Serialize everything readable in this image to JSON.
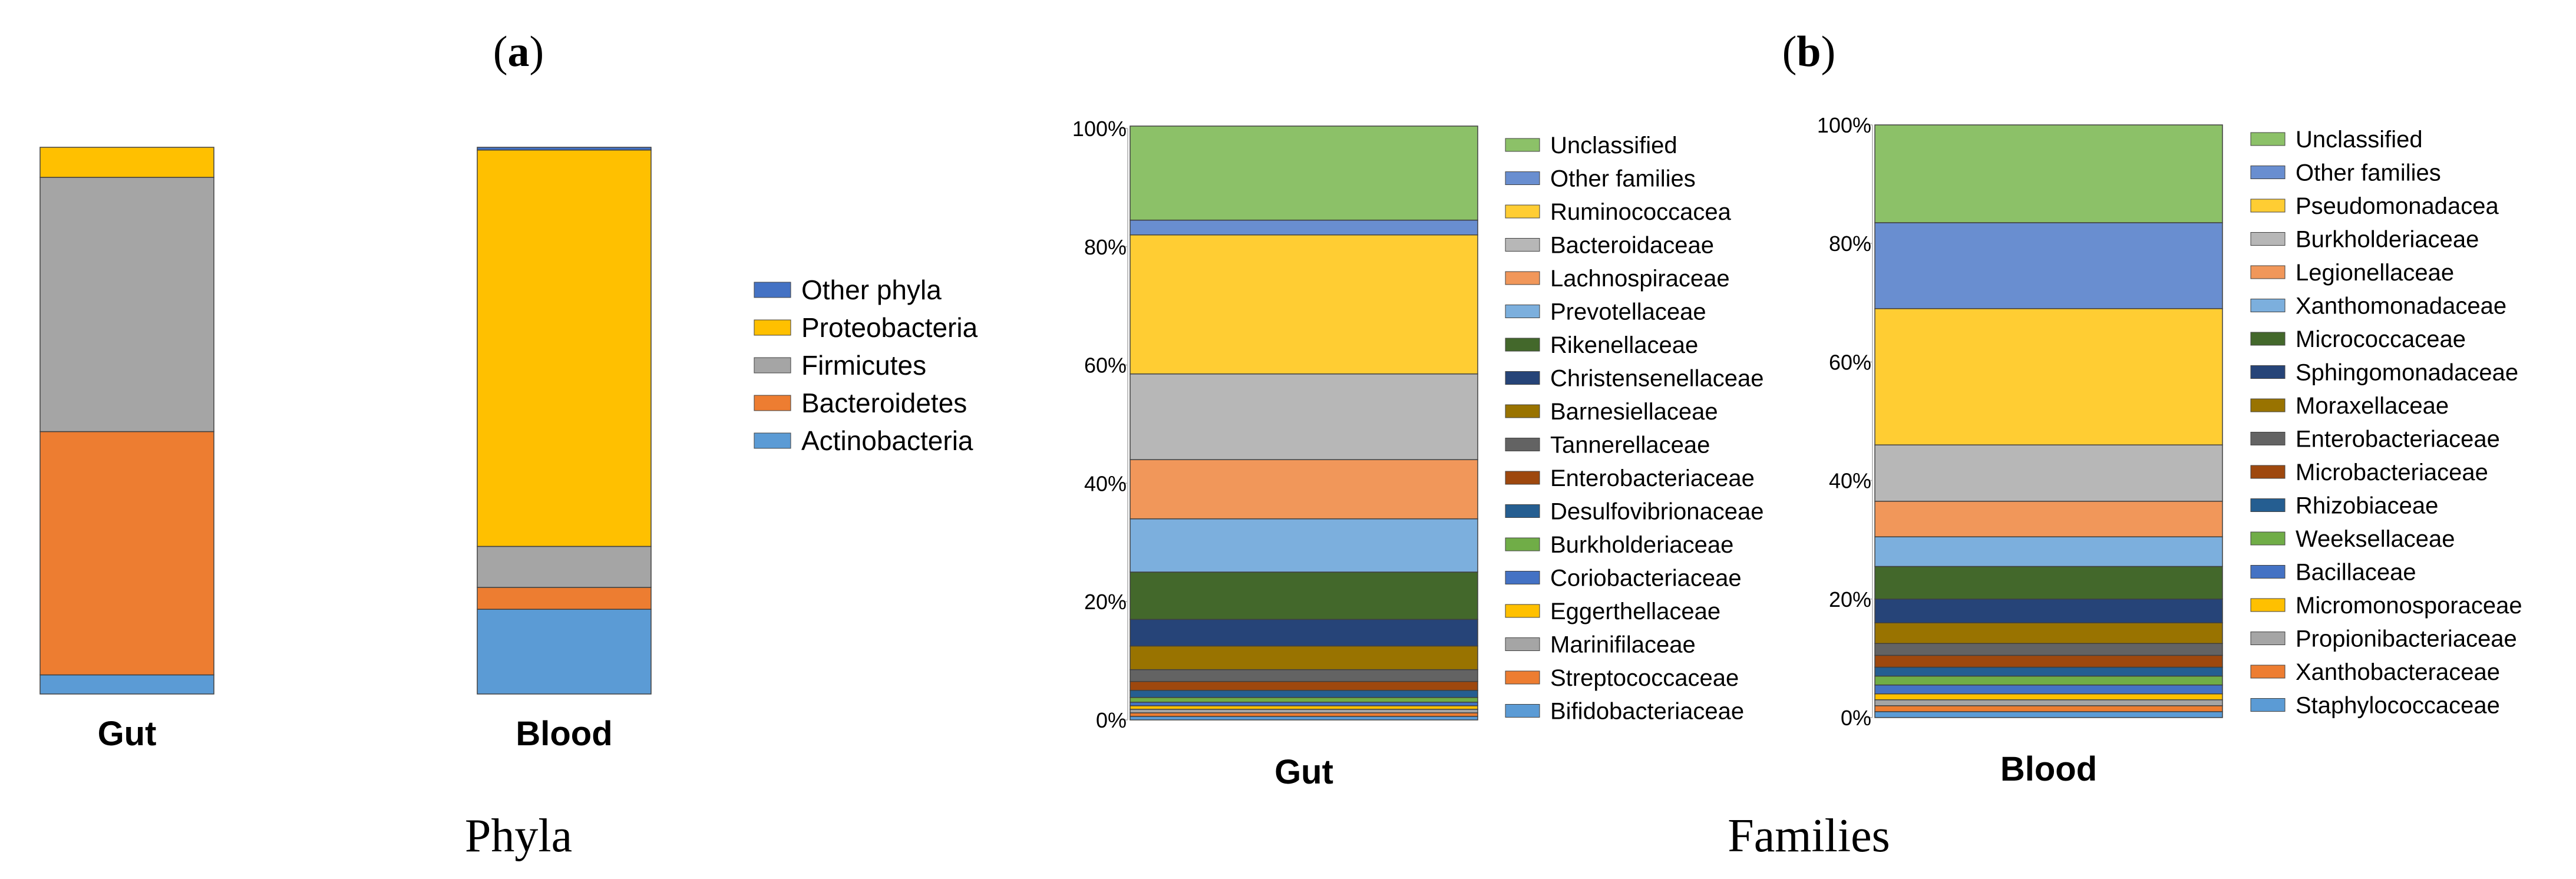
{
  "panel_a": {
    "label_prefix": "(",
    "label": "a",
    "label_suffix": ")",
    "caption": "Phyla"
  },
  "panel_b": {
    "label_prefix": "(",
    "label": "b",
    "label_suffix": ")",
    "caption": "Families"
  },
  "chart_data": [
    {
      "type": "bar",
      "stacked": true,
      "categories": [
        "Gut",
        "Blood"
      ],
      "ylim": [
        0,
        100
      ],
      "series": [
        {
          "name": "Actinobacteria",
          "color": "#5b9bd5",
          "values": [
            3.5,
            15.5
          ]
        },
        {
          "name": "Bacteroidetes",
          "color": "#ed7d31",
          "values": [
            44.5,
            4
          ]
        },
        {
          "name": "Firmicutes",
          "color": "#a5a5a5",
          "values": [
            46.5,
            7.5
          ]
        },
        {
          "name": "Proteobacteria",
          "color": "#ffc000",
          "values": [
            5.5,
            72.5
          ]
        },
        {
          "name": "Other phyla",
          "color": "#4472c4",
          "values": [
            0,
            0.5
          ]
        }
      ],
      "legend": [
        "Other phyla",
        "Proteobacteria",
        "Firmicutes",
        "Bacteroidetes",
        "Actinobacteria"
      ]
    },
    {
      "type": "bar",
      "stacked": true,
      "categories": [
        "Gut"
      ],
      "ylim": [
        0,
        100
      ],
      "yticks": [
        "0%",
        "20%",
        "40%",
        "60%",
        "80%",
        "100%"
      ],
      "series": [
        {
          "name": "Bifidobacteriaceae",
          "color": "#5b9bd5",
          "values": [
            0.6
          ]
        },
        {
          "name": "Streptococcaceae",
          "color": "#ed7d31",
          "values": [
            0.6
          ]
        },
        {
          "name": "Marinifilaceae",
          "color": "#a5a5a5",
          "values": [
            0.6
          ]
        },
        {
          "name": "Eggerthellaceae",
          "color": "#ffc000",
          "values": [
            0.6
          ]
        },
        {
          "name": "Coriobacteriaceae",
          "color": "#4472c4",
          "values": [
            0.6
          ]
        },
        {
          "name": "Burkholderiaceae",
          "color": "#70ad47",
          "values": [
            0.8
          ]
        },
        {
          "name": "Desulfovibrionaceae",
          "color": "#255e91",
          "values": [
            1.2
          ]
        },
        {
          "name": "Enterobacteriaceae",
          "color": "#9e480e",
          "values": [
            1.5
          ]
        },
        {
          "name": "Tannerellaceae",
          "color": "#636363",
          "values": [
            2.0
          ]
        },
        {
          "name": "Barnesiellaceae",
          "color": "#997300",
          "values": [
            4.0
          ]
        },
        {
          "name": "Christensenellaceae",
          "color": "#264478",
          "values": [
            4.5
          ]
        },
        {
          "name": "Rikenellaceae",
          "color": "#43682b",
          "values": [
            8.0
          ]
        },
        {
          "name": "Prevotellaceae",
          "color": "#7cafdd",
          "values": [
            9.0
          ]
        },
        {
          "name": "Lachnospiraceae",
          "color": "#f1975a",
          "values": [
            10.0
          ]
        },
        {
          "name": "Bacteroidaceae",
          "color": "#b7b7b7",
          "values": [
            14.5
          ]
        },
        {
          "name": "Ruminococcacea",
          "color": "#ffcd33",
          "values": [
            23.5
          ]
        },
        {
          "name": "Other families",
          "color": "#698ed0",
          "values": [
            2.5
          ]
        },
        {
          "name": "Unclassified",
          "color": "#8cc168",
          "values": [
            15.9
          ]
        }
      ],
      "legend": [
        "Unclassified",
        "Other families",
        "Ruminococcacea",
        "Bacteroidaceae",
        "Lachnospiraceae",
        "Prevotellaceae",
        "Rikenellaceae",
        "Christensenellaceae",
        "Barnesiellaceae",
        "Tannerellaceae",
        "Enterobacteriaceae",
        "Desulfovibrionaceae",
        "Burkholderiaceae",
        "Coriobacteriaceae",
        "Eggerthellaceae",
        "Marinifilaceae",
        "Streptococcaceae",
        "Bifidobacteriaceae"
      ]
    },
    {
      "type": "bar",
      "stacked": true,
      "categories": [
        "Blood"
      ],
      "ylim": [
        0,
        100
      ],
      "yticks": [
        "0%",
        "20%",
        "40%",
        "60%",
        "80%",
        "100%"
      ],
      "series": [
        {
          "name": "Staphylococcaceae",
          "color": "#5b9bd5",
          "values": [
            1.0
          ]
        },
        {
          "name": "Xanthobacteraceae",
          "color": "#ed7d31",
          "values": [
            1.0
          ]
        },
        {
          "name": "Propionibacteriaceae",
          "color": "#a5a5a5",
          "values": [
            1.0
          ]
        },
        {
          "name": "Micromonosporaceae",
          "color": "#ffc000",
          "values": [
            1.0
          ]
        },
        {
          "name": "Bacillaceae",
          "color": "#4472c4",
          "values": [
            1.5
          ]
        },
        {
          "name": "Weeksellaceae",
          "color": "#70ad47",
          "values": [
            1.5
          ]
        },
        {
          "name": "Rhizobiaceae",
          "color": "#255e91",
          "values": [
            1.5
          ]
        },
        {
          "name": "Microbacteriaceae",
          "color": "#9e480e",
          "values": [
            2.0
          ]
        },
        {
          "name": "Enterobacteriaceae",
          "color": "#636363",
          "values": [
            2.0
          ]
        },
        {
          "name": "Moraxellaceae",
          "color": "#997300",
          "values": [
            3.5
          ]
        },
        {
          "name": "Sphingomonadaceae",
          "color": "#264478",
          "values": [
            4.0
          ]
        },
        {
          "name": "Micrococcaceae",
          "color": "#43682b",
          "values": [
            5.5
          ]
        },
        {
          "name": "Xanthomonadaceae",
          "color": "#7cafdd",
          "values": [
            5.0
          ]
        },
        {
          "name": "Legionellaceae",
          "color": "#f1975a",
          "values": [
            6.0
          ]
        },
        {
          "name": "Burkholderiaceae",
          "color": "#b7b7b7",
          "values": [
            9.5
          ]
        },
        {
          "name": "Pseudomonadacea",
          "color": "#ffcd33",
          "values": [
            23.0
          ]
        },
        {
          "name": "Other families",
          "color": "#698ed0",
          "values": [
            14.5
          ]
        },
        {
          "name": "Unclassified",
          "color": "#8cc168",
          "values": [
            16.5
          ]
        }
      ],
      "legend": [
        "Unclassified",
        "Other families",
        "Pseudomonadacea",
        "Burkholderiaceae",
        "Legionellaceae",
        "Xanthomonadaceae",
        "Micrococcaceae",
        "Sphingomonadaceae",
        "Moraxellaceae",
        "Enterobacteriaceae",
        "Microbacteriaceae",
        "Rhizobiaceae",
        "Weeksellaceae",
        "Bacillaceae",
        "Micromonosporaceae",
        "Propionibacteriaceae",
        "Xanthobacteraceae",
        "Staphylococcaceae"
      ]
    }
  ]
}
